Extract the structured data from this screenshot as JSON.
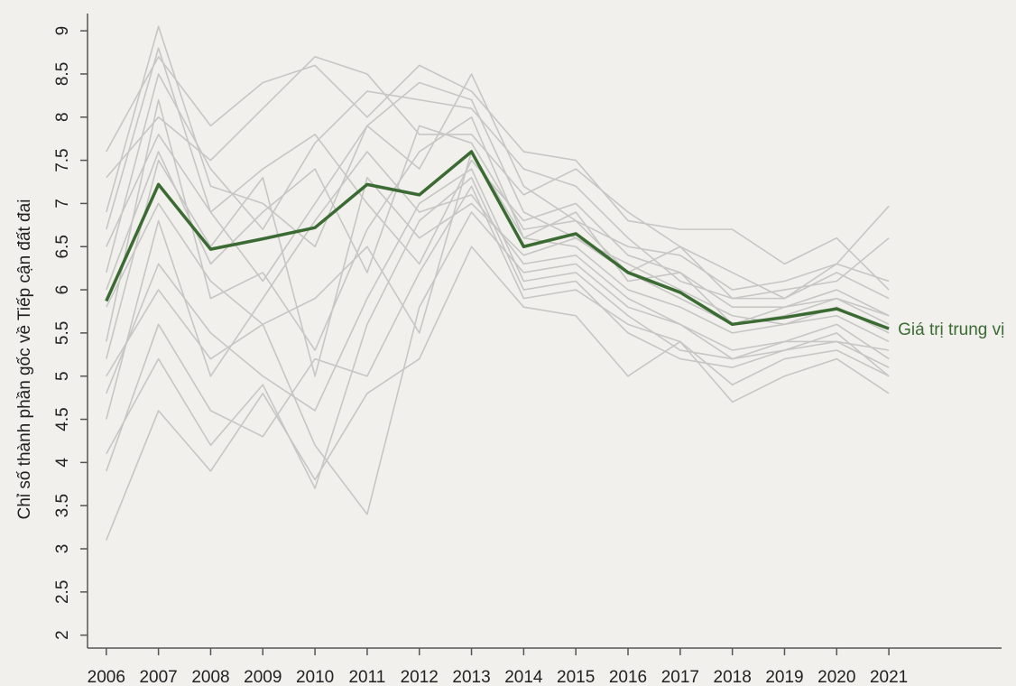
{
  "chart_data": {
    "type": "line",
    "ylabel": "Chỉ số thành phần gốc về Tiếp cận đất đai",
    "x": [
      2006,
      2007,
      2008,
      2009,
      2010,
      2011,
      2012,
      2013,
      2014,
      2015,
      2016,
      2017,
      2018,
      2019,
      2020,
      2021
    ],
    "xlim": [
      2005.64,
      2023.16
    ],
    "xticks": [
      2006,
      2007,
      2008,
      2009,
      2010,
      2011,
      2012,
      2013,
      2014,
      2015,
      2016,
      2017,
      2018,
      2019,
      2020,
      2021
    ],
    "ylim": [
      1.85,
      9.2
    ],
    "yticks": [
      2,
      2.5,
      3,
      3.5,
      4,
      4.5,
      5,
      5.5,
      6,
      6.5,
      7,
      7.5,
      8,
      8.5,
      9
    ],
    "series": [
      {
        "color": "#c6c6c4",
        "values": [
          7.6,
          8.7,
          7.9,
          8.4,
          8.6,
          8.0,
          8.6,
          8.3,
          7.6,
          7.5,
          6.8,
          6.7,
          6.7,
          6.3,
          6.6,
          6.0
        ]
      },
      {
        "color": "#c6c6c4",
        "values": [
          3.1,
          4.6,
          3.9,
          4.8,
          3.8,
          4.8,
          5.2,
          6.5,
          5.8,
          5.7,
          5.0,
          5.4,
          4.7,
          5.0,
          5.2,
          4.8
        ]
      },
      {
        "color": "#c6c6c4",
        "values": [
          4.1,
          5.2,
          4.2,
          4.9,
          3.7,
          5.6,
          6.8,
          7.3,
          6.0,
          6.1,
          5.5,
          5.2,
          5.1,
          5.3,
          5.5,
          5.0
        ]
      },
      {
        "color": "#c6c6c4",
        "values": [
          6.9,
          9.05,
          7.2,
          7.0,
          6.5,
          7.9,
          7.4,
          8.5,
          7.2,
          6.8,
          6.5,
          6.4,
          6.0,
          6.1,
          6.3,
          6.97
        ]
      },
      {
        "color": "#c6c6c4",
        "values": [
          5.0,
          6.0,
          5.2,
          5.6,
          4.2,
          3.4,
          5.8,
          6.9,
          6.2,
          6.3,
          5.8,
          5.6,
          5.3,
          5.4,
          5.6,
          5.2
        ]
      },
      {
        "color": "#c6c6c4",
        "values": [
          6.5,
          7.8,
          6.9,
          7.4,
          7.8,
          7.0,
          6.3,
          7.5,
          6.8,
          7.0,
          6.4,
          6.2,
          5.8,
          5.8,
          6.0,
          5.7
        ]
      },
      {
        "color": "#c6c6c4",
        "values": [
          5.4,
          8.2,
          5.9,
          6.2,
          5.3,
          6.7,
          7.6,
          8.0,
          6.6,
          6.5,
          6.0,
          5.8,
          5.5,
          5.6,
          5.7,
          5.4
        ]
      },
      {
        "color": "#c6c6c4",
        "values": [
          4.5,
          6.8,
          5.0,
          5.9,
          6.8,
          7.6,
          6.9,
          7.1,
          6.3,
          6.4,
          5.9,
          5.6,
          5.2,
          5.4,
          5.4,
          5.3
        ]
      },
      {
        "color": "#c6c6c4",
        "values": [
          6.2,
          8.5,
          7.4,
          6.7,
          7.7,
          8.3,
          8.2,
          8.1,
          7.4,
          7.2,
          6.6,
          6.1,
          5.9,
          6.0,
          6.1,
          6.6
        ]
      },
      {
        "color": "#c6c6c4",
        "values": [
          5.8,
          7.0,
          6.1,
          5.6,
          5.9,
          6.5,
          5.5,
          7.6,
          6.6,
          6.9,
          6.1,
          6.2,
          5.6,
          5.7,
          5.9,
          5.7
        ]
      },
      {
        "color": "#c6c6c4",
        "values": [
          4.8,
          6.3,
          5.5,
          5.0,
          4.6,
          5.9,
          7.0,
          7.4,
          6.1,
          6.2,
          5.7,
          5.3,
          5.2,
          5.3,
          5.4,
          5.1
        ]
      },
      {
        "color": "#c6c6c4",
        "values": [
          7.3,
          8.0,
          7.5,
          8.1,
          8.7,
          8.5,
          7.8,
          7.8,
          7.1,
          7.4,
          6.9,
          6.5,
          6.2,
          5.9,
          6.3,
          6.1
        ]
      },
      {
        "color": "#c6c6c4",
        "values": [
          5.2,
          7.5,
          6.5,
          7.3,
          5.0,
          7.3,
          6.6,
          7.0,
          6.4,
          6.6,
          6.3,
          6.0,
          5.7,
          5.6,
          5.8,
          5.5
        ]
      },
      {
        "color": "#c6c6c4",
        "values": [
          6.7,
          8.8,
          6.9,
          6.1,
          7.0,
          7.9,
          8.4,
          8.2,
          6.9,
          6.6,
          6.2,
          6.5,
          5.9,
          5.9,
          6.2,
          5.9
        ]
      },
      {
        "color": "#c6c6c4",
        "values": [
          3.9,
          5.6,
          4.6,
          4.3,
          5.2,
          5.0,
          6.2,
          7.2,
          5.9,
          6.0,
          5.6,
          5.4,
          4.9,
          5.2,
          5.3,
          5.0
        ]
      },
      {
        "color": "#c6c6c4",
        "values": [
          6.0,
          7.6,
          6.3,
          6.9,
          7.4,
          6.2,
          7.9,
          7.7,
          6.7,
          6.8,
          6.2,
          5.9,
          5.6,
          5.8,
          5.9,
          5.6
        ]
      },
      {
        "name": "Giá trị trung vị",
        "color": "#3b6b33",
        "values": [
          5.87,
          7.22,
          6.47,
          6.59,
          6.72,
          7.22,
          7.1,
          7.6,
          6.5,
          6.65,
          6.2,
          5.97,
          5.6,
          5.68,
          5.78,
          5.55
        ]
      }
    ]
  }
}
